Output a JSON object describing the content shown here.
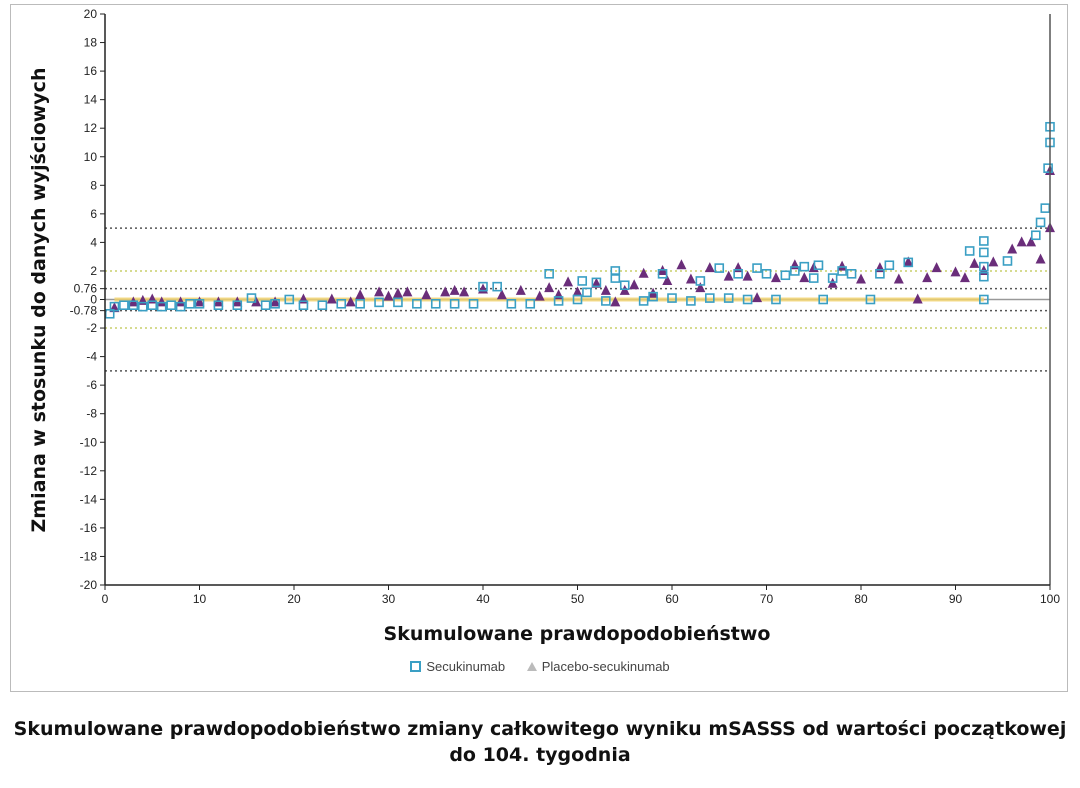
{
  "chart_data": {
    "type": "scatter",
    "xlabel": "Skumulowane prawdopodobieństwo",
    "ylabel": "Zmiana w stosunku do danych wyjściowych",
    "xlim": [
      0,
      100
    ],
    "ylim": [
      -20,
      20
    ],
    "x_ticks": [
      0,
      10,
      20,
      30,
      40,
      50,
      60,
      70,
      80,
      90,
      100
    ],
    "y_ticks": [
      20,
      18,
      16,
      14,
      12,
      10,
      8,
      6,
      4,
      2,
      0.76,
      0,
      -0.78,
      -2,
      -4,
      -6,
      -8,
      -10,
      -12,
      -14,
      -16,
      -18,
      -20
    ],
    "reference_lines": [
      {
        "y": 5,
        "style": "dotted",
        "color": "#555555"
      },
      {
        "y": -5,
        "style": "dotted",
        "color": "#555555"
      },
      {
        "y": 2,
        "style": "dotted",
        "color": "#c9cf6a"
      },
      {
        "y": -2,
        "style": "dotted",
        "color": "#c9cf6a"
      },
      {
        "y": 0.76,
        "style": "dotted",
        "color": "#555555"
      },
      {
        "y": -0.78,
        "style": "dotted",
        "color": "#555555"
      },
      {
        "y": 0,
        "style": "solid",
        "color": "#999999"
      }
    ],
    "legend_placement": "bottom",
    "series": [
      {
        "name": "Secukinumab",
        "marker": "square",
        "color": "#3a9fc4",
        "points": [
          [
            0.5,
            -1.0
          ],
          [
            1,
            -0.5
          ],
          [
            2,
            -0.4
          ],
          [
            3,
            -0.4
          ],
          [
            4,
            -0.5
          ],
          [
            5,
            -0.4
          ],
          [
            6,
            -0.5
          ],
          [
            7,
            -0.4
          ],
          [
            8,
            -0.5
          ],
          [
            9,
            -0.3
          ],
          [
            10,
            -0.3
          ],
          [
            12,
            -0.4
          ],
          [
            14,
            -0.4
          ],
          [
            15.5,
            0.1
          ],
          [
            17,
            -0.4
          ],
          [
            18,
            -0.3
          ],
          [
            19.5,
            0.0
          ],
          [
            21,
            -0.4
          ],
          [
            23,
            -0.4
          ],
          [
            25,
            -0.3
          ],
          [
            27,
            -0.3
          ],
          [
            29,
            -0.2
          ],
          [
            31,
            -0.2
          ],
          [
            33,
            -0.3
          ],
          [
            35,
            -0.3
          ],
          [
            37,
            -0.3
          ],
          [
            39,
            -0.3
          ],
          [
            40,
            0.9
          ],
          [
            41.5,
            0.9
          ],
          [
            43,
            -0.3
          ],
          [
            45,
            -0.3
          ],
          [
            47,
            1.8
          ],
          [
            48,
            -0.1
          ],
          [
            50,
            0.0
          ],
          [
            50.5,
            1.3
          ],
          [
            51,
            0.5
          ],
          [
            52,
            1.2
          ],
          [
            53,
            -0.1
          ],
          [
            54,
            1.5
          ],
          [
            54,
            2.0
          ],
          [
            55,
            1.0
          ],
          [
            57,
            -0.1
          ],
          [
            58,
            0.2
          ],
          [
            59,
            1.8
          ],
          [
            60,
            0.1
          ],
          [
            62,
            -0.1
          ],
          [
            63,
            1.3
          ],
          [
            64,
            0.1
          ],
          [
            65,
            2.2
          ],
          [
            66,
            0.1
          ],
          [
            67,
            1.8
          ],
          [
            68,
            0.0
          ],
          [
            69,
            2.2
          ],
          [
            70,
            1.8
          ],
          [
            71,
            0.0
          ],
          [
            72,
            1.7
          ],
          [
            73,
            2.0
          ],
          [
            74,
            2.3
          ],
          [
            75,
            1.5
          ],
          [
            75.5,
            2.4
          ],
          [
            76,
            0.0
          ],
          [
            77,
            1.5
          ],
          [
            78,
            2.0
          ],
          [
            79,
            1.8
          ],
          [
            81,
            0.0
          ],
          [
            82,
            1.8
          ],
          [
            83,
            2.4
          ],
          [
            85,
            2.6
          ],
          [
            91.5,
            3.4
          ],
          [
            93,
            0.0
          ],
          [
            93,
            1.6
          ],
          [
            93,
            2.3
          ],
          [
            93,
            3.3
          ],
          [
            93,
            4.1
          ],
          [
            95.5,
            2.7
          ],
          [
            98.5,
            4.5
          ],
          [
            99,
            5.4
          ],
          [
            99.5,
            6.4
          ],
          [
            99.8,
            9.2
          ],
          [
            100,
            11.0
          ],
          [
            100,
            12.1
          ]
        ]
      },
      {
        "name": "Placebo-secukinumab",
        "marker": "triangle",
        "color": "#6a2d7a",
        "points": [
          [
            1,
            -0.6
          ],
          [
            3,
            -0.2
          ],
          [
            4,
            -0.1
          ],
          [
            5,
            0.0
          ],
          [
            6,
            -0.2
          ],
          [
            8,
            -0.2
          ],
          [
            10,
            -0.2
          ],
          [
            12,
            -0.2
          ],
          [
            14,
            -0.2
          ],
          [
            16,
            -0.2
          ],
          [
            18,
            -0.2
          ],
          [
            21,
            0.0
          ],
          [
            24,
            0.0
          ],
          [
            26,
            -0.2
          ],
          [
            27,
            0.3
          ],
          [
            29,
            0.5
          ],
          [
            30,
            0.2
          ],
          [
            31,
            0.4
          ],
          [
            32,
            0.5
          ],
          [
            34,
            0.3
          ],
          [
            36,
            0.5
          ],
          [
            37,
            0.6
          ],
          [
            38,
            0.5
          ],
          [
            40,
            0.7
          ],
          [
            42,
            0.3
          ],
          [
            44,
            0.6
          ],
          [
            46,
            0.2
          ],
          [
            47,
            0.8
          ],
          [
            48,
            0.3
          ],
          [
            49,
            1.2
          ],
          [
            50,
            0.5
          ],
          [
            52,
            1.1
          ],
          [
            53,
            0.6
          ],
          [
            54,
            -0.2
          ],
          [
            55,
            0.6
          ],
          [
            56,
            1.0
          ],
          [
            57,
            1.8
          ],
          [
            58,
            0.4
          ],
          [
            59,
            2.0
          ],
          [
            59.5,
            1.3
          ],
          [
            61,
            2.4
          ],
          [
            62,
            1.4
          ],
          [
            63,
            0.8
          ],
          [
            64,
            2.2
          ],
          [
            66,
            1.6
          ],
          [
            67,
            2.2
          ],
          [
            68,
            1.6
          ],
          [
            69,
            0.1
          ],
          [
            71,
            1.5
          ],
          [
            73,
            2.4
          ],
          [
            74,
            1.5
          ],
          [
            75,
            2.2
          ],
          [
            77,
            1.1
          ],
          [
            78,
            2.3
          ],
          [
            80,
            1.4
          ],
          [
            82,
            2.2
          ],
          [
            84,
            1.4
          ],
          [
            85,
            2.6
          ],
          [
            86,
            0.0
          ],
          [
            87,
            1.5
          ],
          [
            88,
            2.2
          ],
          [
            90,
            1.9
          ],
          [
            91,
            1.5
          ],
          [
            92,
            2.5
          ],
          [
            93,
            2.0
          ],
          [
            94,
            2.6
          ],
          [
            96,
            3.5
          ],
          [
            97,
            4.0
          ],
          [
            98,
            4.0
          ],
          [
            99,
            2.8
          ],
          [
            100,
            9.0
          ],
          [
            100,
            5.0
          ]
        ]
      }
    ]
  },
  "legend": {
    "items": [
      "Secukinumab",
      "Placebo-secukinumab"
    ]
  },
  "caption": {
    "line1": "Skumulowane prawdopodobieństwo zmiany całkowitego wyniku mSASSS od wartości początkowej",
    "line2": "do 104. tygodnia"
  }
}
